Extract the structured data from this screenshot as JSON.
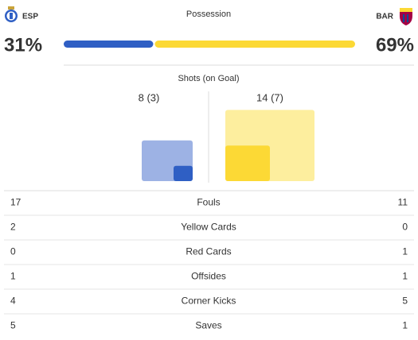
{
  "header": {
    "home_team": "ESP",
    "away_team": "BAR",
    "possession_title": "Possession"
  },
  "possession": {
    "home": {
      "value": 31,
      "label": "31%",
      "color": "#2f5fc4"
    },
    "away": {
      "value": 69,
      "label": "69%",
      "color": "#fcd935"
    }
  },
  "shots": {
    "title": "Shots (on Goal)",
    "home": {
      "total": 8,
      "on_goal": 3,
      "label": "8 (3)",
      "color": "#9db2e4",
      "inner_color": "#2f5fc4"
    },
    "away": {
      "total": 14,
      "on_goal": 7,
      "label": "14 (7)",
      "color": "#fdee9e",
      "inner_color": "#fcd935"
    }
  },
  "stats": [
    {
      "label": "Fouls",
      "home": 17,
      "away": 11
    },
    {
      "label": "Yellow Cards",
      "home": 2,
      "away": 0
    },
    {
      "label": "Red Cards",
      "home": 0,
      "away": 1
    },
    {
      "label": "Offsides",
      "home": 1,
      "away": 1
    },
    {
      "label": "Corner Kicks",
      "home": 4,
      "away": 5
    },
    {
      "label": "Saves",
      "home": 5,
      "away": 1
    }
  ]
}
